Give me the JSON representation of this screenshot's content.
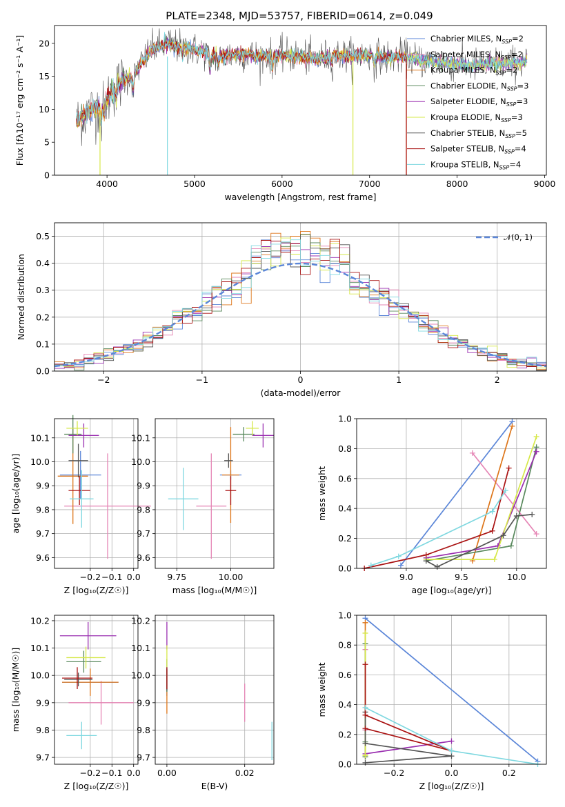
{
  "title": "PLATE=2348, MJD=53757, FIBERID=0614, z=0.049",
  "colors": {
    "Chabrier MILES": "#5b86d8",
    "Salpeter MILES": "#e585b5",
    "Kroupa MILES": "#dd7519",
    "Chabrier ELODIE": "#58885c",
    "Salpeter ELODIE": "#9a2fb0",
    "Kroupa ELODIE": "#d6e848",
    "Chabrier STELIB": "#545454",
    "Salpeter STELIB": "#aa1313",
    "Kroupa STELIB": "#7fd8e0",
    "normal": "#5b86d8",
    "axes": "#000000",
    "grid": "#b0b0b0"
  },
  "chart_data": [
    {
      "type": "line",
      "xlabel": "wavelength [Angstrom, rest frame]",
      "ylabel": "Flux [fλ10⁻¹⁷ erg cm⁻² s⁻¹ A⁻¹]",
      "xlim": [
        3400,
        9020
      ],
      "ylim": [
        0,
        22.7
      ],
      "xticks": [
        "4000",
        "5000",
        "6000",
        "7000",
        "8000",
        "9000"
      ],
      "yticks": [
        "0",
        "5",
        "10",
        "15",
        "20"
      ],
      "grid": false,
      "legend_position": "top-right",
      "legend": [
        "Chabrier MILES, N_SSP=2",
        "Salpeter MILES, N_SSP=2",
        "Kroupa MILES, N_SSP=2",
        "Chabrier ELODIE, N_SSP=3",
        "Salpeter ELODIE, N_SSP=3",
        "Kroupa ELODIE, N_SSP=3",
        "Chabrier STELIB, N_SSP=5",
        "Salpeter STELIB, N_SSP=4",
        "Kroupa STELIB, N_SSP=4"
      ],
      "continuum": {
        "x": [
          3650,
          3800,
          3900,
          4000,
          4100,
          4200,
          4300,
          4400,
          4500,
          4600,
          4700,
          4800,
          4900,
          5000,
          5100,
          5200,
          5300,
          5400,
          5500,
          5600,
          5700,
          5800,
          6000,
          6200,
          6400,
          6600,
          6800,
          7000,
          7200,
          7400,
          7600,
          7800,
          8000,
          8200,
          8400,
          8600,
          8800
        ],
        "y": [
          8.0,
          9.8,
          10.2,
          11.5,
          13.5,
          14.5,
          15.2,
          17.0,
          19.0,
          19.5,
          20.0,
          19.5,
          19.4,
          19.0,
          18.8,
          18.2,
          17.8,
          18.3,
          18.2,
          18.4,
          18.0,
          18.1,
          18.2,
          18.0,
          17.6,
          18.2,
          18.1,
          18.2,
          17.8,
          18.0,
          17.4,
          17.2,
          16.8,
          16.6,
          16.9,
          17.0,
          17.2
        ]
      },
      "absorption_features": [
        {
          "x": 3933,
          "depth": 2.5
        },
        {
          "x": 3968,
          "depth": 2.0
        },
        {
          "x": 4100,
          "depth": 1.5
        },
        {
          "x": 4300,
          "depth": 2.5
        },
        {
          "x": 4861,
          "depth": 1.2
        },
        {
          "x": 5175,
          "depth": 2.5
        },
        {
          "x": 5270,
          "depth": 1.0
        },
        {
          "x": 5890,
          "depth": 2.0
        },
        {
          "x": 6563,
          "depth": 1.0
        },
        {
          "x": 7050,
          "depth": 1.2
        }
      ],
      "spikes": [
        {
          "x": 3920,
          "series": "Kroupa ELODIE",
          "from": 10,
          "to": 0
        },
        {
          "x": 4690,
          "series": "Kroupa STELIB",
          "from": 18,
          "to": 0
        },
        {
          "x": 6810,
          "series": "Kroupa ELODIE",
          "from": 18,
          "to": 0
        },
        {
          "x": 7420,
          "series": "Kroupa MILES",
          "from": 18,
          "to": 0
        },
        {
          "x": 7420,
          "series": "Salpeter STELIB",
          "from": 18,
          "to": 0
        }
      ]
    },
    {
      "type": "histogram",
      "xlabel": "(data-model)/error",
      "ylabel": "Normed distribution",
      "xlim": [
        -2.5,
        2.5
      ],
      "ylim": [
        0,
        0.55
      ],
      "xticks": [
        "−2",
        "−1",
        "0",
        "1",
        "2"
      ],
      "yticks": [
        "0.0",
        "0.1",
        "0.2",
        "0.3",
        "0.4",
        "0.5"
      ],
      "grid": true,
      "legend_position": "top-right",
      "legend": [
        "𝒩(0, 1)"
      ],
      "bin_width": 0.1,
      "bin_start": -2.5
    },
    {
      "type": "scatter",
      "xlabel": "Z [log₁₀(Z/Z☉)]",
      "ylabel": "age  [log₁₀(age/yr)]",
      "xlim": [
        -0.365,
        0.02
      ],
      "ylim": [
        9.555,
        10.18
      ],
      "xticks": [
        "−0.2",
        "−0.1",
        "0.0"
      ],
      "xtick_values": [
        -0.2,
        -0.1,
        0.0
      ],
      "yticks": [
        "9.6",
        "9.7",
        "9.8",
        "9.9",
        "10.0",
        "10.1"
      ],
      "ytick_values": [
        9.6,
        9.7,
        9.8,
        9.9,
        10.0,
        10.1
      ],
      "grid": true,
      "points": [
        {
          "s": "Chabrier MILES",
          "x": -0.245,
          "y": 9.945,
          "xerr": 0.095,
          "yerr": 0.1
        },
        {
          "s": "Salpeter MILES",
          "x": -0.12,
          "y": 9.815,
          "xerr": 0.2,
          "yerr": 0.22
        },
        {
          "s": "Kroupa MILES",
          "x": -0.28,
          "y": 9.94,
          "xerr": 0.07,
          "yerr": 0.2
        },
        {
          "s": "Chabrier ELODIE",
          "x": -0.28,
          "y": 10.115,
          "xerr": 0.04,
          "yerr": 0.08
        },
        {
          "s": "Salpeter ELODIE",
          "x": -0.23,
          "y": 10.11,
          "xerr": 0.07,
          "yerr": 0.05
        },
        {
          "s": "Kroupa ELODIE",
          "x": -0.26,
          "y": 10.14,
          "xerr": 0.05,
          "yerr": 0.03
        },
        {
          "s": "Chabrier STELIB",
          "x": -0.255,
          "y": 10.005,
          "xerr": 0.045,
          "yerr": 0.07
        },
        {
          "s": "Salpeter STELIB",
          "x": -0.25,
          "y": 9.88,
          "xerr": 0.05,
          "yerr": 0.06
        },
        {
          "s": "Kroupa STELIB",
          "x": -0.24,
          "y": 9.845,
          "xerr": 0.055,
          "yerr": 0.12
        }
      ]
    },
    {
      "type": "scatter",
      "xlabel": "mass [log₁₀(M/M☉)]",
      "ylabel": "",
      "xlim": [
        9.65,
        10.2
      ],
      "ylim": [
        9.555,
        10.18
      ],
      "xticks": [
        "9.75",
        "10.00"
      ],
      "xtick_values": [
        9.75,
        10.0
      ],
      "yticks": [
        "9.6",
        "9.7",
        "9.8",
        "9.9",
        "10.0",
        "10.1"
      ],
      "ytick_values": [
        9.6,
        9.7,
        9.8,
        9.9,
        10.0,
        10.1
      ],
      "grid": true,
      "points": [
        {
          "s": "Chabrier MILES",
          "x": 10.0,
          "y": 9.945,
          "xerr": 0.05,
          "yerr": 0.02
        },
        {
          "s": "Salpeter MILES",
          "x": 9.91,
          "y": 9.815,
          "xerr": 0.07,
          "yerr": 0.22
        },
        {
          "s": "Kroupa MILES",
          "x": 10.0,
          "y": 9.945,
          "xerr": 0.04,
          "yerr": 0.2
        },
        {
          "s": "Chabrier ELODIE",
          "x": 10.06,
          "y": 10.115,
          "xerr": 0.05,
          "yerr": 0.03
        },
        {
          "s": "Salpeter ELODIE",
          "x": 10.15,
          "y": 10.11,
          "xerr": 0.05,
          "yerr": 0.05
        },
        {
          "s": "Kroupa ELODIE",
          "x": 10.1,
          "y": 10.14,
          "xerr": 0.03,
          "yerr": 0.03
        },
        {
          "s": "Chabrier STELIB",
          "x": 9.99,
          "y": 10.005,
          "xerr": 0.02,
          "yerr": 0.03
        },
        {
          "s": "Salpeter STELIB",
          "x": 10.0,
          "y": 9.88,
          "xerr": 0.025,
          "yerr": 0.06
        },
        {
          "s": "Kroupa STELIB",
          "x": 9.78,
          "y": 9.845,
          "xerr": 0.07,
          "yerr": 0.13
        }
      ]
    },
    {
      "type": "line",
      "xlabel": "age  [log₁₀(age/yr)]",
      "ylabel": "mass weight",
      "xlim": [
        8.55,
        10.27
      ],
      "ylim": [
        0,
        1.0
      ],
      "xticks": [
        "9.0",
        "9.5",
        "10.0"
      ],
      "xtick_values": [
        9.0,
        9.5,
        10.0
      ],
      "yticks": [
        "0.0",
        "0.2",
        "0.4",
        "0.6",
        "0.8",
        "1.0"
      ],
      "ytick_values": [
        0,
        0.2,
        0.4,
        0.6,
        0.8,
        1.0
      ],
      "grid": true,
      "series": [
        {
          "name": "Chabrier MILES",
          "x": [
            8.95,
            9.96
          ],
          "y": [
            0.02,
            0.98
          ]
        },
        {
          "name": "Salpeter MILES",
          "x": [
            9.6,
            10.18
          ],
          "y": [
            0.77,
            0.23
          ]
        },
        {
          "name": "Kroupa MILES",
          "x": [
            9.6,
            9.96
          ],
          "y": [
            0.05,
            0.95
          ]
        },
        {
          "name": "Chabrier ELODIE",
          "x": [
            9.18,
            9.95,
            10.18
          ],
          "y": [
            0.05,
            0.15,
            0.81
          ]
        },
        {
          "name": "Salpeter ELODIE",
          "x": [
            9.18,
            9.83,
            10.18
          ],
          "y": [
            0.07,
            0.15,
            0.78
          ]
        },
        {
          "name": "Kroupa ELODIE",
          "x": [
            9.18,
            9.8,
            10.18
          ],
          "y": [
            0.06,
            0.06,
            0.88
          ]
        },
        {
          "name": "Chabrier STELIB",
          "x": [
            9.18,
            9.28,
            9.88,
            10.0,
            10.14
          ],
          "y": [
            0.05,
            0.01,
            0.22,
            0.35,
            0.36
          ]
        },
        {
          "name": "Salpeter STELIB",
          "x": [
            8.62,
            9.18,
            9.78,
            9.93
          ],
          "y": [
            0.0,
            0.09,
            0.25,
            0.67
          ]
        },
        {
          "name": "Kroupa STELIB",
          "x": [
            8.68,
            8.93,
            9.78,
            9.9
          ],
          "y": [
            0.02,
            0.08,
            0.38,
            0.52
          ]
        }
      ]
    },
    {
      "type": "scatter",
      "xlabel": "Z [log₁₀(Z/Z☉)]",
      "ylabel": "mass [log₁₀(M/M☉)]",
      "xlim": [
        -0.365,
        0.02
      ],
      "ylim": [
        9.675,
        10.22
      ],
      "xticks": [
        "−0.2",
        "−0.1",
        "0.0"
      ],
      "xtick_values": [
        -0.2,
        -0.1,
        0.0
      ],
      "yticks": [
        "9.7",
        "9.8",
        "9.9",
        "10.0",
        "10.1",
        "10.2"
      ],
      "ytick_values": [
        9.7,
        9.8,
        9.9,
        10.0,
        10.1,
        10.2
      ],
      "grid": true,
      "points": [
        {
          "s": "Chabrier MILES",
          "x": -0.2,
          "y": 9.975,
          "xerr": 0.13,
          "yerr": 0.02
        },
        {
          "s": "Salpeter MILES",
          "x": -0.15,
          "y": 9.9,
          "xerr": 0.15,
          "yerr": 0.08
        },
        {
          "s": "Kroupa MILES",
          "x": -0.2,
          "y": 9.975,
          "xerr": 0.13,
          "yerr": 0.05
        },
        {
          "s": "Chabrier ELODIE",
          "x": -0.23,
          "y": 10.05,
          "xerr": 0.08,
          "yerr": 0.04
        },
        {
          "s": "Salpeter ELODIE",
          "x": -0.21,
          "y": 10.145,
          "xerr": 0.13,
          "yerr": 0.05
        },
        {
          "s": "Kroupa ELODIE",
          "x": -0.22,
          "y": 10.065,
          "xerr": 0.09,
          "yerr": 0.04
        },
        {
          "s": "Chabrier STELIB",
          "x": -0.255,
          "y": 9.985,
          "xerr": 0.065,
          "yerr": 0.025
        },
        {
          "s": "Salpeter STELIB",
          "x": -0.26,
          "y": 9.99,
          "xerr": 0.07,
          "yerr": 0.04
        },
        {
          "s": "Kroupa STELIB",
          "x": -0.24,
          "y": 9.78,
          "xerr": 0.07,
          "yerr": 0.05
        }
      ]
    },
    {
      "type": "scatter",
      "xlabel": "E(B-V)",
      "ylabel": "",
      "xlim": [
        -0.003,
        0.0275
      ],
      "ylim": [
        9.675,
        10.22
      ],
      "xticks": [
        "0.00",
        "0.02"
      ],
      "xtick_values": [
        0.0,
        0.02
      ],
      "yticks": [
        "9.7",
        "9.8",
        "9.9",
        "10.0",
        "10.1",
        "10.2"
      ],
      "ytick_values": [
        9.7,
        9.8,
        9.9,
        10.0,
        10.1,
        10.2
      ],
      "grid": true,
      "points": [
        {
          "s": "Chabrier MILES",
          "x": 0.0,
          "y": 9.975,
          "xerr": 0.0,
          "yerr": 0.05
        },
        {
          "s": "Salpeter MILES",
          "x": 0.02,
          "y": 9.9,
          "xerr": 0.0,
          "yerr": 0.07
        },
        {
          "s": "Kroupa MILES",
          "x": 0.0,
          "y": 9.94,
          "xerr": 0.0,
          "yerr": 0.08
        },
        {
          "s": "Chabrier ELODIE",
          "x": 0.0,
          "y": 10.0,
          "xerr": 0.0,
          "yerr": 0.06
        },
        {
          "s": "Salpeter ELODIE",
          "x": 0.0,
          "y": 10.145,
          "xerr": 0.0,
          "yerr": 0.05
        },
        {
          "s": "Kroupa ELODIE",
          "x": 0.0,
          "y": 10.07,
          "xerr": 0.0,
          "yerr": 0.04
        },
        {
          "s": "Chabrier STELIB",
          "x": 0.0,
          "y": 9.985,
          "xerr": 0.0,
          "yerr": 0.04
        },
        {
          "s": "Salpeter STELIB",
          "x": 0.0,
          "y": 9.99,
          "xerr": 0.0,
          "yerr": 0.04
        },
        {
          "s": "Kroupa STELIB",
          "x": 0.027,
          "y": 9.76,
          "xerr": 0.0,
          "yerr": 0.07
        }
      ]
    },
    {
      "type": "line",
      "xlabel": "Z [log₁₀(Z/Z☉)]",
      "ylabel": "mass weight",
      "xlim": [
        -0.33,
        0.33
      ],
      "ylim": [
        0,
        1.0
      ],
      "xticks": [
        "−0.2",
        "0.0",
        "0.2"
      ],
      "xtick_values": [
        -0.2,
        0.0,
        0.2
      ],
      "yticks": [
        "0.0",
        "0.2",
        "0.4",
        "0.6",
        "0.8",
        "1.0"
      ],
      "ytick_values": [
        0,
        0.2,
        0.4,
        0.6,
        0.8,
        1.0
      ],
      "grid": true,
      "series": [
        {
          "name": "Chabrier MILES",
          "x": [
            -0.3,
            0.3
          ],
          "y": [
            0.98,
            0.02
          ]
        },
        {
          "name": "Salpeter MILES",
          "x": [
            -0.3,
            -0.3
          ],
          "y": [
            0.77,
            0.23
          ]
        },
        {
          "name": "Kroupa MILES",
          "x": [
            -0.3,
            -0.3
          ],
          "y": [
            0.05,
            0.95
          ]
        },
        {
          "name": "Chabrier ELODIE",
          "x": [
            -0.3,
            -0.3,
            -0.3
          ],
          "y": [
            0.05,
            0.15,
            0.81
          ]
        },
        {
          "name": "Salpeter ELODIE",
          "x": [
            -0.3,
            0.0
          ],
          "y": [
            0.07,
            0.155
          ]
        },
        {
          "name": "Kroupa ELODIE",
          "x": [
            -0.3,
            -0.3,
            -0.3
          ],
          "y": [
            0.06,
            0.06,
            0.88
          ]
        },
        {
          "name": "Chabrier STELIB",
          "x": [
            -0.3,
            0.0,
            -0.3,
            -0.3
          ],
          "y": [
            0.01,
            0.055,
            0.14,
            0.35
          ]
        },
        {
          "name": "Salpeter STELIB",
          "x": [
            -0.3,
            0.0,
            -0.3,
            -0.3
          ],
          "y": [
            0.24,
            0.09,
            0.33,
            0.67
          ]
        },
        {
          "name": "Kroupa STELIB",
          "x": [
            -0.3,
            0.0,
            0.3
          ],
          "y": [
            0.38,
            0.09,
            0.0
          ]
        }
      ]
    }
  ]
}
